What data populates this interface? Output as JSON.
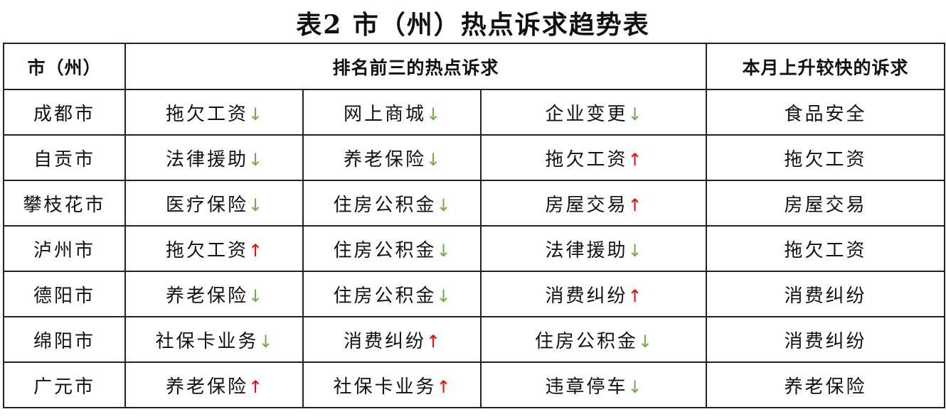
{
  "title": "表2 市（州）热点诉求趋势表",
  "colors": {
    "up": "#ff0000",
    "down": "#70ad47"
  },
  "headers": {
    "city": "市（州）",
    "top3": "排名前三的热点诉求",
    "rising": "本月上升较快的诉求"
  },
  "rows": [
    {
      "city": "成都市",
      "items": [
        {
          "text": "拖欠工资",
          "trend": "down"
        },
        {
          "text": "网上商城",
          "trend": "down"
        },
        {
          "text": "企业变更",
          "trend": "down"
        }
      ],
      "rising": "食品安全"
    },
    {
      "city": "自贡市",
      "items": [
        {
          "text": "法律援助",
          "trend": "down"
        },
        {
          "text": "养老保险",
          "trend": "down"
        },
        {
          "text": "拖欠工资",
          "trend": "up"
        }
      ],
      "rising": "拖欠工资"
    },
    {
      "city": "攀枝花市",
      "items": [
        {
          "text": "医疗保险",
          "trend": "down"
        },
        {
          "text": "住房公积金",
          "trend": "down"
        },
        {
          "text": "房屋交易",
          "trend": "up"
        }
      ],
      "rising": "房屋交易"
    },
    {
      "city": "泸州市",
      "items": [
        {
          "text": "拖欠工资",
          "trend": "up"
        },
        {
          "text": "住房公积金",
          "trend": "down"
        },
        {
          "text": "法律援助",
          "trend": "down"
        }
      ],
      "rising": "拖欠工资"
    },
    {
      "city": "德阳市",
      "items": [
        {
          "text": "养老保险",
          "trend": "down"
        },
        {
          "text": "住房公积金",
          "trend": "down"
        },
        {
          "text": "消费纠纷",
          "trend": "up"
        }
      ],
      "rising": "消费纠纷"
    },
    {
      "city": "绵阳市",
      "items": [
        {
          "text": "社保卡业务",
          "trend": "down"
        },
        {
          "text": "消费纠纷",
          "trend": "up"
        },
        {
          "text": "住房公积金",
          "trend": "down"
        }
      ],
      "rising": "消费纠纷"
    },
    {
      "city": "广元市",
      "items": [
        {
          "text": "养老保险",
          "trend": "up"
        },
        {
          "text": "社保卡业务",
          "trend": "up"
        },
        {
          "text": "违章停车",
          "trend": "down"
        }
      ],
      "rising": "养老保险"
    }
  ]
}
